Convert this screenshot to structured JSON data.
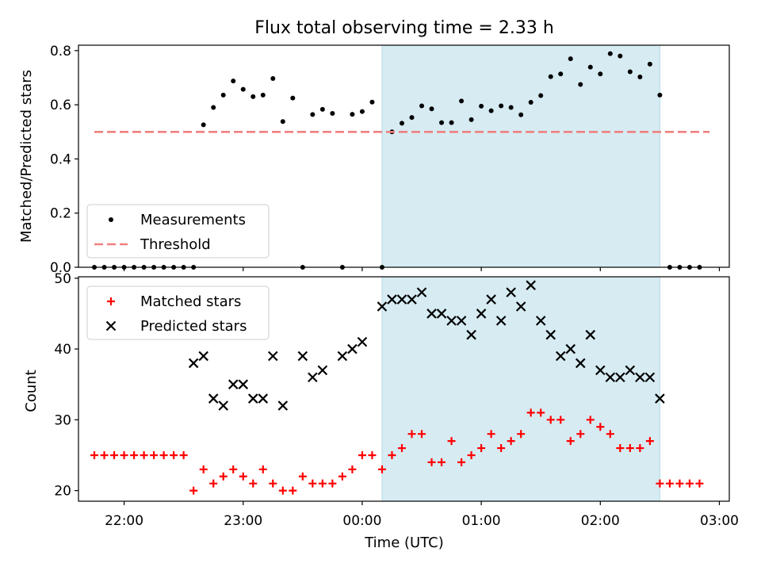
{
  "chart_data": [
    {
      "type": "scatter",
      "title": "Flux total observing time = 2.33 h",
      "xlabel": "",
      "ylabel": "Matched/Predicted stars",
      "ylim": [
        0,
        0.82
      ],
      "yticks": [
        0.0,
        0.2,
        0.4,
        0.6,
        0.8
      ],
      "ytick_labels": [
        "0.0",
        "0.2",
        "0.4",
        "0.6",
        "0.8"
      ],
      "xaxis": "time_utc",
      "xlim": [
        "21:37",
        "03:05"
      ],
      "grid": false,
      "legend": "lower-left",
      "shaded_span": {
        "start": "00:10",
        "end": "02:30",
        "color": "#add8e6"
      },
      "series": [
        {
          "name": "Measurements",
          "marker": "dot",
          "color": "#000000",
          "x": [
            "21:45",
            "21:50",
            "21:55",
            "22:00",
            "22:05",
            "22:10",
            "22:15",
            "22:20",
            "22:25",
            "22:30",
            "22:35",
            "22:40",
            "22:45",
            "22:50",
            "22:55",
            "23:00",
            "23:05",
            "23:10",
            "23:15",
            "23:20",
            "23:25",
            "23:30",
            "23:35",
            "23:40",
            "23:45",
            "23:50",
            "23:55",
            "00:00",
            "00:05",
            "00:10",
            "00:15",
            "00:20",
            "00:25",
            "00:30",
            "00:35",
            "00:40",
            "00:45",
            "00:50",
            "00:55",
            "01:00",
            "01:05",
            "01:10",
            "01:15",
            "01:20",
            "01:25",
            "01:30",
            "01:35",
            "01:40",
            "01:45",
            "01:50",
            "01:55",
            "02:00",
            "02:05",
            "02:10",
            "02:15",
            "02:20",
            "02:25",
            "02:30",
            "02:35",
            "02:40",
            "02:45",
            "02:50"
          ],
          "y": [
            0,
            0,
            0,
            0,
            0,
            0,
            0,
            0,
            0,
            0,
            0,
            0.526,
            0.59,
            0.636,
            0.688,
            0.657,
            0.63,
            0.636,
            0.697,
            0.538,
            0.625,
            0,
            0.564,
            0.583,
            0.568,
            0,
            0.565,
            0.575,
            0.61,
            0,
            0.5,
            0.532,
            0.553,
            0.596,
            0.585,
            0.534,
            0.534,
            0.614,
            0.545,
            0.595,
            0.578,
            0.596,
            0.59,
            0.563,
            0.609,
            0.634,
            0.704,
            0.714,
            0.77,
            0.675,
            0.739,
            0.714,
            0.789,
            0.78,
            0.722,
            0.703,
            0.75,
            0.636,
            0,
            0,
            0,
            0
          ]
        },
        {
          "name": "Threshold",
          "line_style": "dashed",
          "color": "#f08080",
          "x": [
            "21:45",
            "02:55"
          ],
          "y": [
            0.5,
            0.5
          ]
        }
      ]
    },
    {
      "type": "scatter",
      "title": "",
      "xlabel": "Time (UTC)",
      "ylabel": "Count",
      "ylim": [
        18.5,
        50.2
      ],
      "yticks": [
        20,
        30,
        40,
        50
      ],
      "ytick_labels": [
        "20",
        "30",
        "40",
        "50"
      ],
      "xaxis": "time_utc",
      "xlim": [
        "21:37",
        "03:05"
      ],
      "xticks": [
        "22:00",
        "23:00",
        "00:00",
        "01:00",
        "02:00",
        "03:00"
      ],
      "grid": false,
      "legend": "upper-left",
      "shaded_span": {
        "start": "00:10",
        "end": "02:30",
        "color": "#add8e6"
      },
      "series": [
        {
          "name": "Matched stars",
          "marker": "plus",
          "color": "#ff0000",
          "x": [
            "21:45",
            "21:50",
            "21:55",
            "22:00",
            "22:05",
            "22:10",
            "22:15",
            "22:20",
            "22:25",
            "22:30",
            "22:35",
            "22:40",
            "22:45",
            "22:50",
            "22:55",
            "23:00",
            "23:05",
            "23:10",
            "23:15",
            "23:20",
            "23:25",
            "23:30",
            "23:35",
            "23:40",
            "23:45",
            "23:50",
            "23:55",
            "00:00",
            "00:05",
            "00:10",
            "00:15",
            "00:20",
            "00:25",
            "00:30",
            "00:35",
            "00:40",
            "00:45",
            "00:50",
            "00:55",
            "01:00",
            "01:05",
            "01:10",
            "01:15",
            "01:20",
            "01:25",
            "01:30",
            "01:35",
            "01:40",
            "01:45",
            "01:50",
            "01:55",
            "02:00",
            "02:05",
            "02:10",
            "02:15",
            "02:20",
            "02:25",
            "02:30",
            "02:35",
            "02:40",
            "02:45",
            "02:50"
          ],
          "y": [
            25,
            25,
            25,
            25,
            25,
            25,
            25,
            25,
            25,
            25,
            20,
            23,
            21,
            22,
            23,
            22,
            21,
            23,
            21,
            20,
            20,
            22,
            21,
            21,
            21,
            22,
            23,
            25,
            25,
            23,
            25,
            26,
            28,
            28,
            24,
            24,
            27,
            24,
            25,
            26,
            28,
            26,
            27,
            28,
            31,
            31,
            30,
            30,
            27,
            28,
            30,
            29,
            28,
            26,
            26,
            26,
            27,
            21,
            21,
            21,
            21,
            21
          ]
        },
        {
          "name": "Predicted stars",
          "marker": "x",
          "color": "#000000",
          "x": [
            "22:35",
            "22:40",
            "22:45",
            "22:50",
            "22:55",
            "23:00",
            "23:05",
            "23:10",
            "23:15",
            "23:20",
            "23:30",
            "23:35",
            "23:40",
            "23:50",
            "23:55",
            "00:00",
            "00:10",
            "00:15",
            "00:20",
            "00:25",
            "00:30",
            "00:35",
            "00:40",
            "00:45",
            "00:50",
            "00:55",
            "01:00",
            "01:05",
            "01:10",
            "01:15",
            "01:20",
            "01:25",
            "01:30",
            "01:35",
            "01:40",
            "01:45",
            "01:50",
            "01:55",
            "02:00",
            "02:05",
            "02:10",
            "02:15",
            "02:20",
            "02:25",
            "02:30"
          ],
          "y": [
            38,
            39,
            33,
            32,
            35,
            35,
            33,
            33,
            39,
            32,
            39,
            36,
            37,
            39,
            40,
            41,
            46,
            47,
            47,
            47,
            48,
            45,
            45,
            44,
            44,
            42,
            45,
            47,
            44,
            48,
            46,
            49,
            44,
            42,
            39,
            40,
            38,
            42,
            37,
            36,
            36,
            37,
            36,
            36,
            33
          ]
        }
      ]
    }
  ]
}
